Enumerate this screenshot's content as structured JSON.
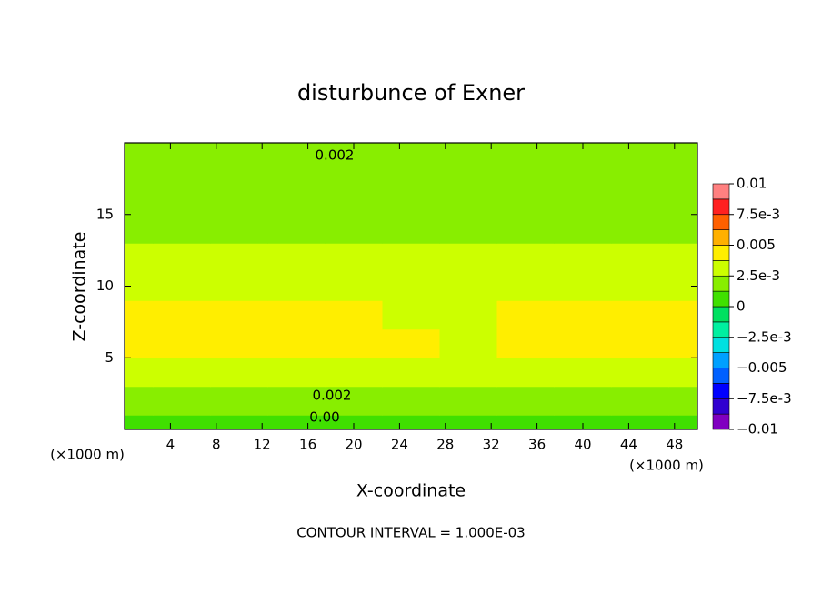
{
  "chart_data": {
    "type": "contour",
    "title": "disturbunce of Exner",
    "x_label": "X-coordinate",
    "y_label": "Z-coordinate",
    "x_unit": "(×1000 m)",
    "y_unit": "(×1000 m)",
    "footnote": "CONTOUR INTERVAL = 1.000E-03",
    "contour_labels": [
      "0.002",
      "0.002",
      "0.00"
    ],
    "xlim": [
      0,
      50
    ],
    "ylim": [
      0,
      20
    ],
    "xticks": [
      4,
      8,
      12,
      16,
      20,
      24,
      28,
      32,
      36,
      40,
      44,
      48
    ],
    "yticks": [
      5,
      10,
      15
    ],
    "x": [
      0,
      5,
      10,
      15,
      20,
      25,
      30,
      35,
      40,
      45,
      50
    ],
    "y": [
      0,
      2,
      4,
      6,
      8,
      10,
      12,
      14,
      16,
      18,
      20
    ],
    "z": [
      [
        0.0006,
        0.0005,
        0.0006,
        0.0005,
        0.0006,
        0.0005,
        0.0006,
        0.0005,
        0.0006,
        0.0005,
        0.0006
      ],
      [
        0.0018,
        0.0017,
        0.0018,
        0.0017,
        0.0018,
        0.0017,
        0.0016,
        0.0017,
        0.0018,
        0.0017,
        0.0018
      ],
      [
        0.0035,
        0.0035,
        0.0036,
        0.0036,
        0.0035,
        0.0035,
        0.0033,
        0.0034,
        0.0035,
        0.0035,
        0.0035
      ],
      [
        0.0041,
        0.0042,
        0.0045,
        0.0044,
        0.0043,
        0.0042,
        0.0036,
        0.0038,
        0.0042,
        0.0043,
        0.0041
      ],
      [
        0.0039,
        0.0039,
        0.0039,
        0.0039,
        0.0039,
        0.0036,
        0.0034,
        0.0038,
        0.0039,
        0.0039,
        0.0039
      ],
      [
        0.0033,
        0.0033,
        0.0033,
        0.0033,
        0.0033,
        0.0033,
        0.0034,
        0.0033,
        0.0033,
        0.0033,
        0.0033
      ],
      [
        0.0026,
        0.0026,
        0.0026,
        0.0026,
        0.0027,
        0.0027,
        0.0028,
        0.0027,
        0.0026,
        0.0026,
        0.0026
      ],
      [
        0.0023,
        0.0023,
        0.0023,
        0.0023,
        0.0023,
        0.0023,
        0.0023,
        0.0023,
        0.0023,
        0.0023,
        0.0023
      ],
      [
        0.0021,
        0.0021,
        0.0021,
        0.0021,
        0.0021,
        0.0021,
        0.0021,
        0.0021,
        0.0021,
        0.0021,
        0.0021
      ],
      [
        0.0019,
        0.0019,
        0.0019,
        0.0019,
        0.0019,
        0.0019,
        0.0019,
        0.0019,
        0.0019,
        0.0019,
        0.0019
      ],
      [
        0.0016,
        0.0016,
        0.0016,
        0.0016,
        0.0016,
        0.0016,
        0.0016,
        0.0016,
        0.0016,
        0.0016,
        0.0016
      ]
    ],
    "levels": [
      -0.01,
      -0.00875,
      -0.0075,
      -0.00625,
      -0.005,
      -0.00375,
      -0.0025,
      -0.00125,
      0,
      0.00125,
      0.0025,
      0.00375,
      0.005,
      0.00625,
      0.0075,
      0.00875,
      0.01
    ],
    "colors": [
      "#8000c0",
      "#3000d0",
      "#0000ff",
      "#0060ff",
      "#00a0ff",
      "#00e0e0",
      "#00f0a0",
      "#00e060",
      "#40e000",
      "#88ee00",
      "#ccff00",
      "#ffee00",
      "#ffb000",
      "#ff6000",
      "#ff2020",
      "#ff8080"
    ],
    "colorbar_ticks": [
      {
        "value": -0.01,
        "label": "−0.01"
      },
      {
        "value": -0.0075,
        "label": "−7.5e-3"
      },
      {
        "value": -0.005,
        "label": "−0.005"
      },
      {
        "value": -0.0025,
        "label": "−2.5e-3"
      },
      0,
      {
        "value": 0.0025,
        "label": "2.5e-3"
      },
      {
        "value": 0.005,
        "label": "0.005"
      },
      {
        "value": 0.0075,
        "label": "7.5e-3"
      },
      0.01
    ]
  }
}
